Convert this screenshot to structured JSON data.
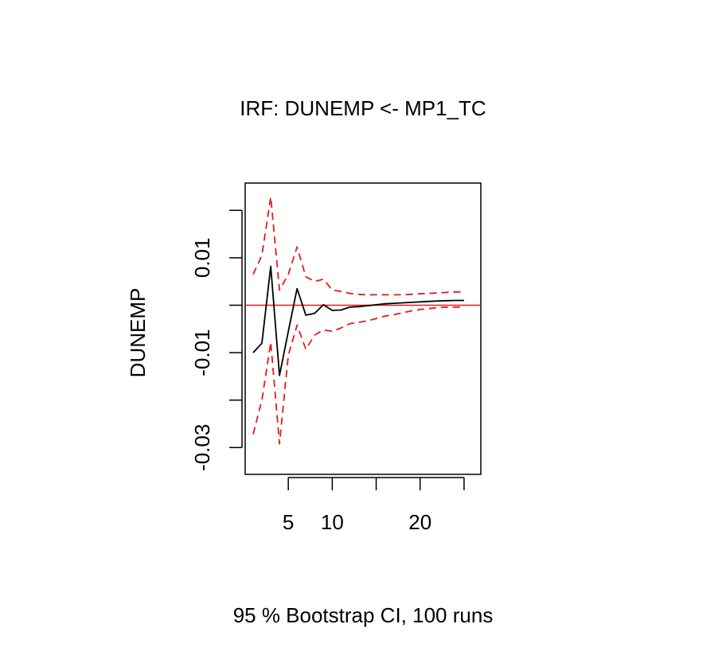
{
  "chart_data": {
    "type": "line",
    "title": "IRF: DUNEMP <- MP1_TC",
    "ylabel": "DUNEMP",
    "xlabel": "",
    "caption": "95 % Bootstrap CI,  100 runs",
    "xlim": [
      1,
      26
    ],
    "ylim": [
      -0.0333,
      0.0234
    ],
    "x_ticks": [
      5,
      10,
      15,
      20,
      25
    ],
    "x_tick_labels": [
      "5",
      "10",
      "",
      "20",
      ""
    ],
    "y_ticks": [
      -0.03,
      -0.02,
      -0.01,
      0.0,
      0.01,
      0.02
    ],
    "y_tick_labels": [
      "-0.03",
      "",
      "-0.01",
      "",
      "0.01",
      ""
    ],
    "grid": false,
    "reference_line": {
      "y": 0,
      "color": "#e31a1c"
    },
    "x": [
      1,
      2,
      3,
      4,
      5,
      6,
      7,
      8,
      9,
      10,
      11,
      12,
      13,
      14,
      15,
      16,
      17,
      18,
      19,
      20,
      21,
      22,
      23,
      24,
      25
    ],
    "series": [
      {
        "name": "",
        "role": "irf",
        "color": "#000000",
        "dash": "solid",
        "values": [
          -0.01,
          -0.008,
          0.0082,
          -0.0148,
          -0.0055,
          0.0035,
          -0.0021,
          -0.0017,
          0.0001,
          -0.0011,
          -0.001,
          -0.0004,
          -0.0003,
          -0.0001,
          0.0001,
          0.0003,
          0.0004,
          0.0005,
          0.0006,
          0.0007,
          0.0008,
          0.0009,
          0.00095,
          0.001,
          0.001
        ]
      },
      {
        "name": "",
        "role": "upper",
        "color": "#e31a1c",
        "dash": "dashed",
        "values": [
          0.0065,
          0.0105,
          0.0228,
          0.0032,
          0.0065,
          0.0123,
          0.006,
          0.005,
          0.0055,
          0.0032,
          0.0029,
          0.0025,
          0.0023,
          0.0022,
          0.0022,
          0.0022,
          0.0022,
          0.0022,
          0.0023,
          0.0024,
          0.0025,
          0.0026,
          0.0027,
          0.0028,
          0.0028
        ]
      },
      {
        "name": "",
        "role": "lower",
        "color": "#e31a1c",
        "dash": "dashed",
        "values": [
          -0.0272,
          -0.02,
          -0.0078,
          -0.0292,
          -0.0105,
          -0.0042,
          -0.0093,
          -0.0063,
          -0.0052,
          -0.0055,
          -0.0048,
          -0.0039,
          -0.0036,
          -0.0033,
          -0.0028,
          -0.0023,
          -0.002,
          -0.0016,
          -0.0012,
          -0.0009,
          -0.0007,
          -0.0005,
          -0.0004,
          -0.0004,
          -0.0004
        ]
      }
    ]
  }
}
